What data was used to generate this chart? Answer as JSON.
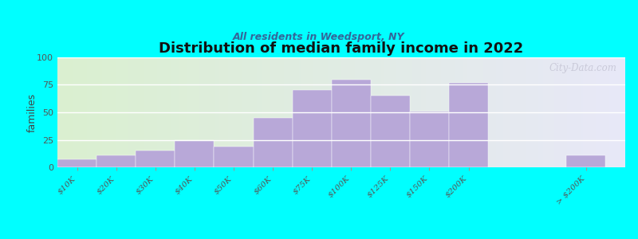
{
  "title": "Distribution of median family income in 2022",
  "subtitle": "All residents in Weedsport, NY",
  "ylabel": "families",
  "background_outer": "#00FFFF",
  "background_inner_left": "#daf0d0",
  "background_inner_right": "#e8e8f8",
  "bar_color": "#b8a8d8",
  "bar_edge_color": "#b8a8d8",
  "categories": [
    "$10K",
    "$20K",
    "$30K",
    "$40K",
    "$50K",
    "$60K",
    "$75K",
    "$100K",
    "$125K",
    "$150K",
    "$200K",
    "> $200K"
  ],
  "values": [
    7,
    11,
    15,
    25,
    19,
    45,
    70,
    80,
    65,
    51,
    77,
    11
  ],
  "x_positions": [
    0,
    1,
    2,
    3,
    4,
    5,
    6,
    7,
    8,
    9,
    10,
    13
  ],
  "bar_width": 1.0,
  "xlim": [
    -0.5,
    14.0
  ],
  "ylim": [
    0,
    100
  ],
  "yticks": [
    0,
    25,
    50,
    75,
    100
  ],
  "watermark": "City-Data.com"
}
